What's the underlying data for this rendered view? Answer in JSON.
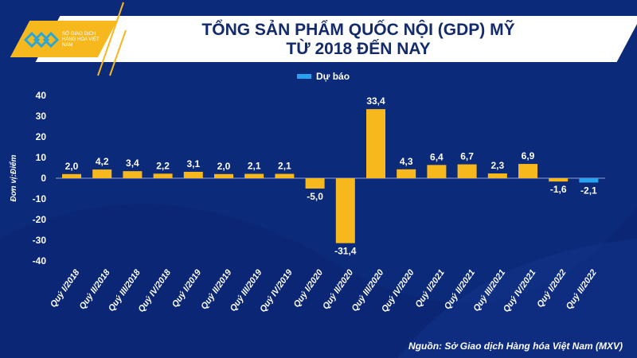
{
  "logo": {
    "text": "SỞ GIAO DỊCH HÀNG HÓA VIỆT NAM"
  },
  "title_line1": "TỔNG SẢN PHẨM QUỐC NỘI (GDP) MỸ",
  "title_line2": "TỪ 2018 ĐẾN NAY",
  "source": "Nguồn: Sở Giao dịch Hàng hóa Việt Nam (MXV)",
  "colors": {
    "actual": "#f6b81c",
    "forecast": "#29a3f0",
    "background": "#0c2a7a"
  },
  "chart_data": {
    "type": "bar",
    "title": "TỔNG SẢN PHẨM QUỐC NỘI (GDP) MỸ TỪ 2018 ĐẾN NAY",
    "ylabel": "Đơn vị:Điểm",
    "ylim": [
      -40,
      40
    ],
    "yticks": [
      40,
      30,
      20,
      10,
      0,
      -10,
      -20,
      -30,
      -40
    ],
    "grid": false,
    "legend": {
      "entries": [
        "Dự báo"
      ],
      "position": "top"
    },
    "categories": [
      "Quý I/2018",
      "Quý II/2018",
      "Quý III/2018",
      "Quý IV/2018",
      "Quý I/2019",
      "Quý II/2019",
      "Quý III/2019",
      "Quý IV/2019",
      "Quý I/2020",
      "Quý II/2020",
      "Quý III/2020",
      "Quý IV/2020",
      "Quý I/2021",
      "Quý II/2021",
      "Quý III/2021",
      "Quý IV/2021",
      "Quý I/2022",
      "Quý II/2022"
    ],
    "values": [
      2.0,
      4.2,
      3.4,
      2.2,
      3.1,
      2.0,
      2.1,
      2.1,
      -5.0,
      -31.4,
      33.4,
      4.3,
      6.4,
      6.7,
      2.3,
      6.9,
      -1.6,
      -2.1
    ],
    "labels": [
      "2,0",
      "4,2",
      "3,4",
      "2,2",
      "3,1",
      "2,0",
      "2,1",
      "2,1",
      "-5,0",
      "-31,4",
      "33,4",
      "4,3",
      "6,4",
      "6,7",
      "2,3",
      "6,9",
      "-1,6",
      "-2,1"
    ],
    "forecast": [
      false,
      false,
      false,
      false,
      false,
      false,
      false,
      false,
      false,
      false,
      false,
      false,
      false,
      false,
      false,
      false,
      false,
      true
    ]
  }
}
